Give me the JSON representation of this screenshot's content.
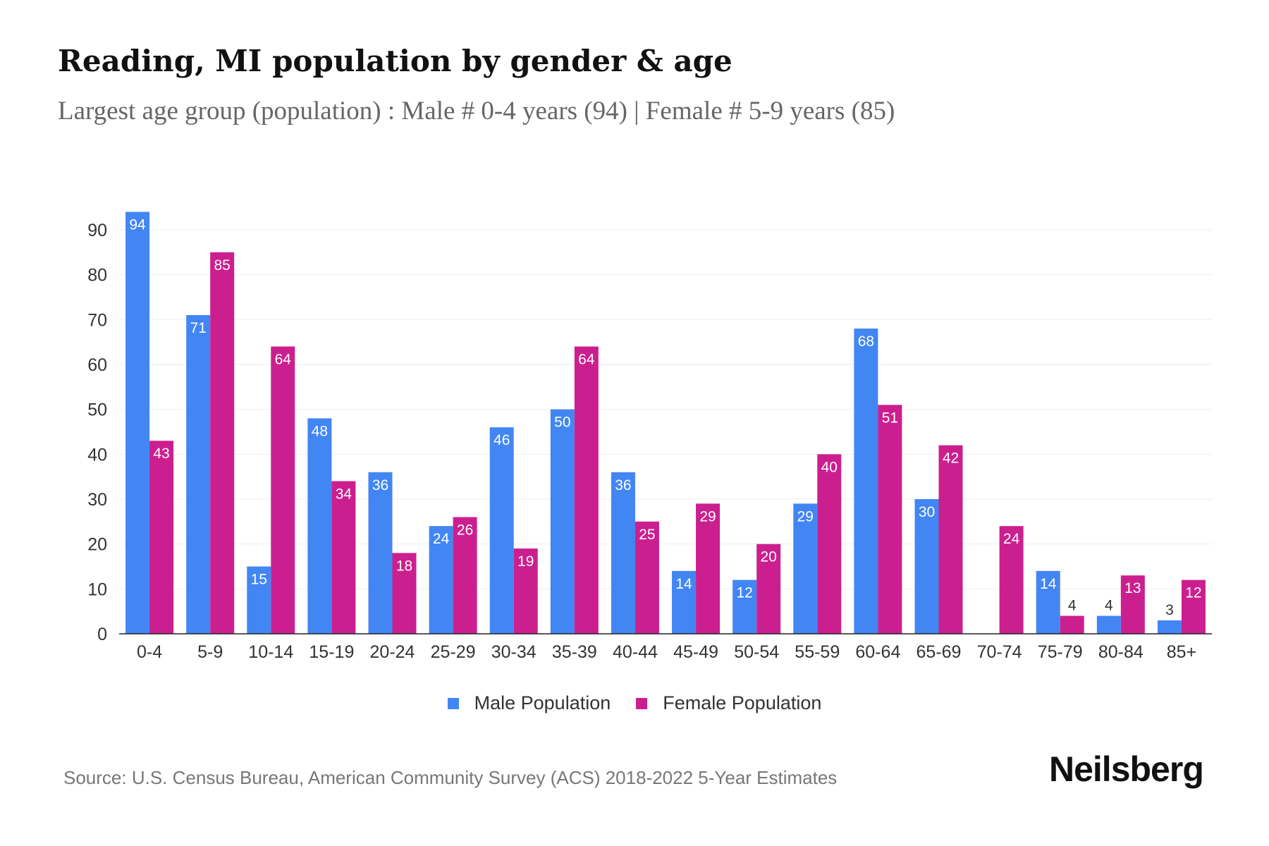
{
  "title": "Reading, MI population by gender & age",
  "subtitle": "Largest age group (population) : Male # 0-4 years (94) | Female # 5-9 years (85)",
  "source": "Source: U.S. Census Bureau, American Community Survey (ACS) 2018-2022 5-Year Estimates",
  "logo": "Neilsberg",
  "colors": {
    "male": "#4286f4",
    "female": "#cc1f8f"
  },
  "chart_data": {
    "type": "bar",
    "categories": [
      "0-4",
      "5-9",
      "10-14",
      "15-19",
      "20-24",
      "25-29",
      "30-34",
      "35-39",
      "40-44",
      "45-49",
      "50-54",
      "55-59",
      "60-64",
      "65-69",
      "70-74",
      "75-79",
      "80-84",
      "85+"
    ],
    "series": [
      {
        "name": "Male Population",
        "values": [
          94,
          71,
          15,
          48,
          36,
          24,
          46,
          50,
          36,
          14,
          12,
          29,
          68,
          30,
          0,
          14,
          4,
          3
        ]
      },
      {
        "name": "Female Population",
        "values": [
          43,
          85,
          64,
          34,
          18,
          26,
          19,
          64,
          25,
          29,
          20,
          40,
          51,
          42,
          24,
          4,
          13,
          12
        ]
      }
    ],
    "yticks": [
      0,
      10,
      20,
      30,
      40,
      50,
      60,
      70,
      80,
      90
    ],
    "ylim": [
      0,
      94
    ],
    "grid": true,
    "legend": "bottom-center"
  }
}
